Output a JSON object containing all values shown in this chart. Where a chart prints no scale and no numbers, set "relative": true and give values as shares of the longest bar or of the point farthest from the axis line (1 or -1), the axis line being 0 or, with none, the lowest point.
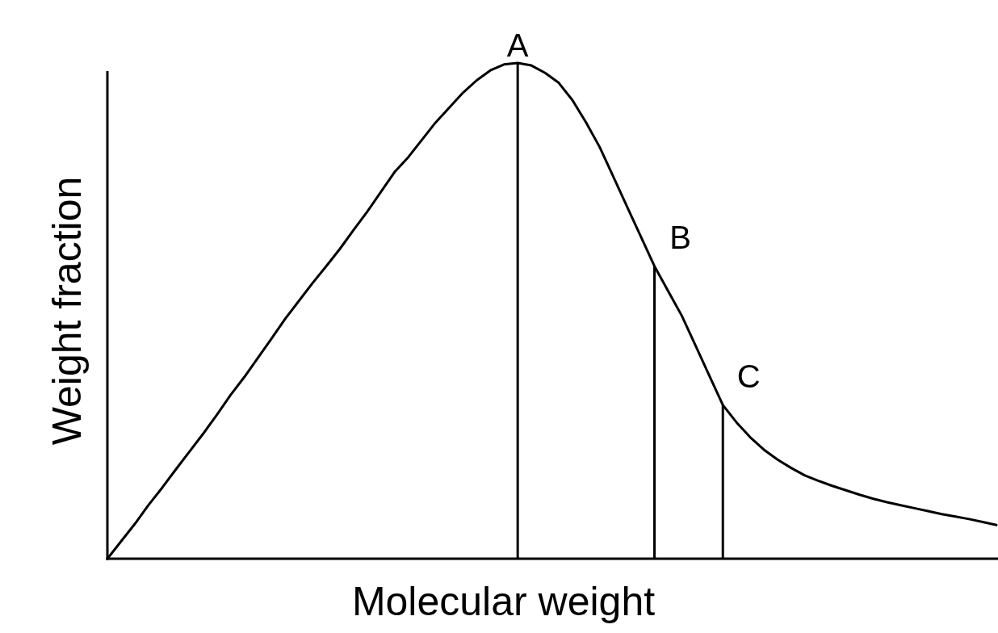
{
  "chart_data": {
    "type": "line",
    "xlabel": "Molecular weight",
    "ylabel": "Weight fraction",
    "relative": true,
    "marker": "none",
    "line_style": "solid",
    "categories": [
      null,
      null,
      null,
      null,
      null,
      null,
      null,
      null,
      null,
      null,
      null,
      null,
      null,
      null,
      null,
      null,
      null,
      null,
      null,
      null,
      null,
      null,
      null,
      null,
      null,
      null,
      null,
      null,
      null,
      null,
      null,
      null,
      null,
      null,
      null,
      null,
      null,
      null,
      null,
      null,
      null,
      null,
      null,
      null,
      null,
      null,
      null,
      null,
      null,
      null,
      null,
      null,
      null,
      null,
      null,
      null,
      null,
      null,
      null,
      null,
      null,
      null,
      null,
      null,
      null,
      null
    ],
    "series": [
      {
        "color": "#000000",
        "values": [
          0,
          0.035,
          0.07,
          0.108,
          0.143,
          0.18,
          0.216,
          0.252,
          0.29,
          0.33,
          0.366,
          0.405,
          0.444,
          0.484,
          0.52,
          0.556,
          0.59,
          0.625,
          0.663,
          0.7,
          0.74,
          0.78,
          0.81,
          0.845,
          0.88,
          0.91,
          0.94,
          0.965,
          0.985,
          0.997,
          1,
          0.995,
          0.98,
          0.96,
          0.925,
          0.88,
          0.83,
          0.77,
          0.71,
          0.65,
          0.59,
          0.54,
          0.49,
          0.43,
          0.37,
          0.31,
          0.275,
          0.245,
          0.22,
          0.2,
          0.183,
          0.168,
          0.157,
          0.147,
          0.138,
          0.129,
          0.121,
          0.114,
          0.108,
          0.102,
          0.096,
          0.09,
          0.085,
          0.08,
          0.074,
          0.068
        ]
      }
    ],
    "annotations": [
      "A",
      "B",
      "C"
    ]
  }
}
